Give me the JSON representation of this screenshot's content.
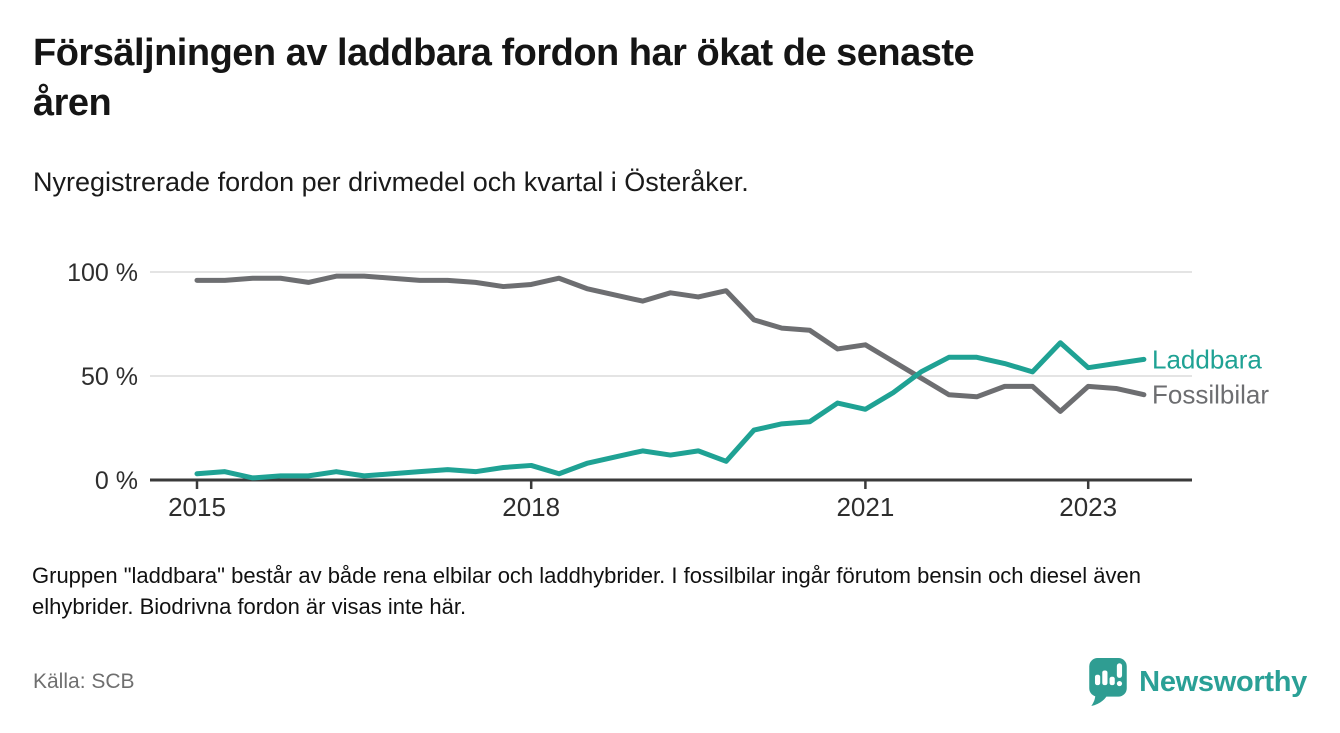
{
  "chart_data": {
    "type": "line",
    "title": "Försäljningen av laddbara fordon har ökat de senaste\nåren",
    "subtitle": "Nyregistrerade fordon per drivmedel och kvartal i Österåker.",
    "unit": "%",
    "categories": [
      "2015 Q1",
      "2015 Q2",
      "2015 Q3",
      "2015 Q4",
      "2016 Q1",
      "2016 Q2",
      "2016 Q3",
      "2016 Q4",
      "2017 Q1",
      "2017 Q2",
      "2017 Q3",
      "2017 Q4",
      "2018 Q1",
      "2018 Q2",
      "2018 Q3",
      "2018 Q4",
      "2019 Q1",
      "2019 Q2",
      "2019 Q3",
      "2019 Q4",
      "2020 Q1",
      "2020 Q2",
      "2020 Q3",
      "2020 Q4",
      "2021 Q1",
      "2021 Q2",
      "2021 Q3",
      "2021 Q4",
      "2022 Q1",
      "2022 Q2",
      "2022 Q3",
      "2022 Q4",
      "2023 Q1",
      "2023 Q2",
      "2023 Q3"
    ],
    "series": [
      {
        "name": "Fossilbilar",
        "color": "#6D6E71",
        "values": [
          96,
          96,
          97,
          97,
          95,
          98,
          98,
          97,
          96,
          96,
          95,
          93,
          94,
          97,
          92,
          89,
          86,
          90,
          88,
          91,
          77,
          73,
          72,
          63,
          65,
          57,
          49,
          41,
          40,
          45,
          45,
          33,
          45,
          44,
          41
        ]
      },
      {
        "name": "Laddbara",
        "color": "#1FA294",
        "values": [
          3,
          4,
          1,
          2,
          2,
          4,
          2,
          3,
          4,
          5,
          4,
          6,
          7,
          3,
          8,
          11,
          14,
          12,
          14,
          9,
          24,
          27,
          28,
          37,
          34,
          42,
          52,
          59,
          59,
          56,
          52,
          66,
          54,
          56,
          58
        ]
      }
    ],
    "ylim": [
      0,
      100
    ],
    "yticks": [
      {
        "value": 0,
        "label": "0 %"
      },
      {
        "value": 50,
        "label": "50 %"
      },
      {
        "value": 100,
        "label": "100 %"
      }
    ],
    "xticks": [
      {
        "index": 0,
        "label": "2015"
      },
      {
        "index": 12,
        "label": "2018"
      },
      {
        "index": 24,
        "label": "2021"
      },
      {
        "index": 32,
        "label": "2023"
      }
    ],
    "grid": "horizontal",
    "legend": "line-end-labels"
  },
  "footnote": "Gruppen \"laddbara\" består av både rena elbilar och laddhybrider. I fossilbilar ingår förutom bensin och diesel även\nelhybrider. Biodrivna fordon är visas inte här.",
  "source": "Källa: SCB",
  "branding": {
    "name": "Newsworthy"
  },
  "colors": {
    "accent_teal": "#1FA294",
    "series_gray": "#6D6E71",
    "axis": "#3A3A3A",
    "gridline": "#DCDCDC",
    "tick_text": "#2E2E2E",
    "logo_teal": "#2F9D92",
    "muted_text": "#6F6F6F"
  }
}
